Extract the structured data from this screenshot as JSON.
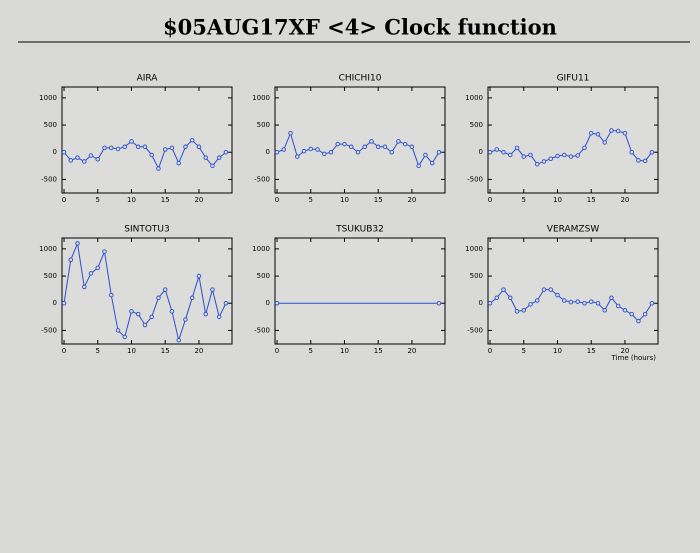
{
  "title": "$05AUG17XF <4>  Clock function",
  "chart_data": [
    {
      "type": "line",
      "title": "AIRA",
      "color": "#2b4fcf",
      "xlim": [
        -0.3,
        24.9
      ],
      "ylim": [
        -750,
        1200
      ],
      "xticks": [
        0,
        5,
        10,
        15,
        20
      ],
      "yticks": [
        1000,
        500,
        0,
        -500
      ],
      "x": [
        0,
        1,
        2,
        3,
        4,
        5,
        6,
        7,
        8,
        9,
        10,
        11,
        12,
        13,
        14,
        15,
        16,
        17,
        18,
        19,
        20,
        21,
        22,
        23,
        24
      ],
      "values": [
        0,
        -150,
        -100,
        -170,
        -60,
        -130,
        80,
        80,
        60,
        100,
        200,
        100,
        100,
        -50,
        -300,
        50,
        80,
        -200,
        100,
        220,
        100,
        -100,
        -250,
        -100,
        0
      ]
    },
    {
      "type": "line",
      "title": "CHICHI10",
      "color": "#2b4fcf",
      "xlim": [
        -0.3,
        24.9
      ],
      "ylim": [
        -750,
        1200
      ],
      "xticks": [
        0,
        5,
        10,
        15,
        20
      ],
      "yticks": [
        1000,
        500,
        0,
        -500
      ],
      "x": [
        0,
        1,
        2,
        3,
        4,
        5,
        6,
        7,
        8,
        9,
        10,
        11,
        12,
        13,
        14,
        15,
        16,
        17,
        18,
        19,
        20,
        21,
        22,
        23,
        24
      ],
      "values": [
        0,
        50,
        350,
        -80,
        20,
        60,
        50,
        -30,
        0,
        150,
        150,
        100,
        0,
        100,
        200,
        100,
        100,
        0,
        200,
        150,
        100,
        -250,
        -50,
        -200,
        0
      ]
    },
    {
      "type": "line",
      "title": "GIFU11",
      "color": "#2b4fcf",
      "xlim": [
        -0.3,
        24.9
      ],
      "ylim": [
        -750,
        1200
      ],
      "xticks": [
        0,
        5,
        10,
        15,
        20
      ],
      "yticks": [
        1000,
        500,
        0,
        -500
      ],
      "x": [
        0,
        1,
        2,
        3,
        4,
        5,
        6,
        7,
        8,
        9,
        10,
        11,
        12,
        13,
        14,
        15,
        16,
        17,
        18,
        19,
        20,
        21,
        22,
        23,
        24
      ],
      "values": [
        0,
        50,
        0,
        -50,
        80,
        -80,
        -50,
        -220,
        -170,
        -120,
        -70,
        -50,
        -80,
        -60,
        80,
        350,
        330,
        180,
        400,
        390,
        350,
        0,
        -150,
        -160,
        0
      ]
    },
    {
      "type": "line",
      "title": "SINTOTU3",
      "color": "#2b4fcf",
      "xlim": [
        -0.3,
        24.9
      ],
      "ylim": [
        -750,
        1200
      ],
      "xticks": [
        0,
        5,
        10,
        15,
        20
      ],
      "yticks": [
        1000,
        500,
        0,
        -500
      ],
      "x": [
        0,
        1,
        2,
        3,
        4,
        5,
        6,
        7,
        8,
        9,
        10,
        11,
        12,
        13,
        14,
        15,
        16,
        17,
        18,
        19,
        20,
        21,
        22,
        23,
        24
      ],
      "values": [
        0,
        800,
        1100,
        300,
        550,
        650,
        950,
        150,
        -500,
        -620,
        -150,
        -200,
        -400,
        -250,
        100,
        250,
        -150,
        -680,
        -300,
        100,
        500,
        -200,
        250,
        -250,
        0
      ]
    },
    {
      "type": "line",
      "title": "TSUKUB32",
      "color": "#2b4fcf",
      "xlim": [
        -0.3,
        24.9
      ],
      "ylim": [
        -750,
        1200
      ],
      "xticks": [
        0,
        5,
        10,
        15,
        20
      ],
      "yticks": [
        1000,
        500,
        0,
        -500
      ],
      "x": [
        0,
        24
      ],
      "values": [
        0,
        0
      ]
    },
    {
      "type": "line",
      "title": "VERAMZSW",
      "color": "#2b4fcf",
      "xlim": [
        -0.3,
        24.9
      ],
      "ylim": [
        -750,
        1200
      ],
      "xticks": [
        0,
        5,
        10,
        15,
        20
      ],
      "yticks": [
        1000,
        500,
        0,
        -500
      ],
      "xlabel": "Time (hours)",
      "x": [
        0,
        1,
        2,
        3,
        4,
        5,
        6,
        7,
        8,
        9,
        10,
        11,
        12,
        13,
        14,
        15,
        16,
        17,
        18,
        19,
        20,
        21,
        22,
        23,
        24
      ],
      "values": [
        0,
        100,
        250,
        100,
        -150,
        -130,
        -20,
        50,
        250,
        250,
        150,
        50,
        20,
        30,
        0,
        30,
        0,
        -130,
        100,
        -50,
        -130,
        -200,
        -330,
        -200,
        0
      ]
    }
  ]
}
